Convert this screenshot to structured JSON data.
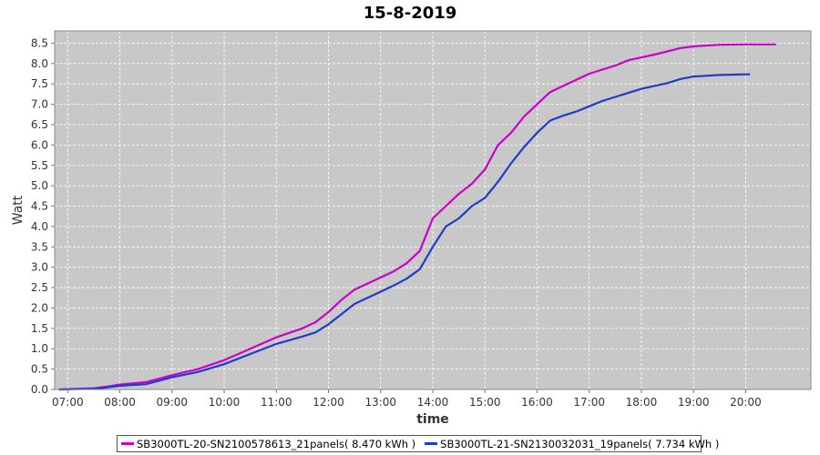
{
  "chart_data": {
    "type": "line",
    "title": "15-8-2019",
    "xlabel": "time",
    "ylabel": "Watt",
    "xlim": [
      "06:45",
      "21:15"
    ],
    "ylim": [
      0,
      8.8
    ],
    "xticks": [
      "07:00",
      "08:00",
      "09:00",
      "10:00",
      "11:00",
      "12:00",
      "13:00",
      "14:00",
      "15:00",
      "16:00",
      "17:00",
      "18:00",
      "19:00",
      "20:00"
    ],
    "yticks": [
      "0.0",
      "0.5",
      "1.0",
      "1.5",
      "2.0",
      "2.5",
      "3.0",
      "3.5",
      "4.0",
      "4.5",
      "5.0",
      "5.5",
      "6.0",
      "6.5",
      "7.0",
      "7.5",
      "8.0",
      "8.5"
    ],
    "grid": true,
    "background": "#c8c8c8",
    "legend_position": "bottom",
    "series": [
      {
        "name": "SB3000TL-20-SN2100578613_21panels( 8.470 kWh )",
        "color": "#cc00cc",
        "points": [
          [
            "06:50",
            0.0
          ],
          [
            "07:30",
            0.03
          ],
          [
            "07:45",
            0.07
          ],
          [
            "08:00",
            0.12
          ],
          [
            "08:30",
            0.18
          ],
          [
            "09:00",
            0.35
          ],
          [
            "09:30",
            0.5
          ],
          [
            "10:00",
            0.72
          ],
          [
            "10:30",
            1.0
          ],
          [
            "11:00",
            1.28
          ],
          [
            "11:30",
            1.5
          ],
          [
            "11:45",
            1.65
          ],
          [
            "12:00",
            1.9
          ],
          [
            "12:15",
            2.2
          ],
          [
            "12:30",
            2.45
          ],
          [
            "12:45",
            2.6
          ],
          [
            "13:00",
            2.75
          ],
          [
            "13:15",
            2.9
          ],
          [
            "13:30",
            3.1
          ],
          [
            "13:45",
            3.4
          ],
          [
            "14:00",
            4.2
          ],
          [
            "14:15",
            4.5
          ],
          [
            "14:30",
            4.8
          ],
          [
            "14:45",
            5.05
          ],
          [
            "15:00",
            5.4
          ],
          [
            "15:15",
            6.0
          ],
          [
            "15:30",
            6.3
          ],
          [
            "15:45",
            6.7
          ],
          [
            "16:00",
            7.0
          ],
          [
            "16:15",
            7.3
          ],
          [
            "16:30",
            7.45
          ],
          [
            "16:45",
            7.6
          ],
          [
            "17:00",
            7.75
          ],
          [
            "17:15",
            7.85
          ],
          [
            "17:30",
            7.95
          ],
          [
            "17:45",
            8.08
          ],
          [
            "18:00",
            8.15
          ],
          [
            "18:15",
            8.22
          ],
          [
            "18:30",
            8.3
          ],
          [
            "18:45",
            8.38
          ],
          [
            "19:00",
            8.42
          ],
          [
            "19:30",
            8.46
          ],
          [
            "20:00",
            8.47
          ],
          [
            "20:30",
            8.47
          ],
          [
            "20:35",
            8.47
          ]
        ]
      },
      {
        "name": "SB3000TL-21-SN2130032031_19panels( 7.734 kWh )",
        "color": "#1e3ccc",
        "points": [
          [
            "06:50",
            0.0
          ],
          [
            "07:30",
            0.02
          ],
          [
            "07:45",
            0.05
          ],
          [
            "08:00",
            0.09
          ],
          [
            "08:30",
            0.13
          ],
          [
            "09:00",
            0.3
          ],
          [
            "09:30",
            0.43
          ],
          [
            "10:00",
            0.62
          ],
          [
            "10:30",
            0.87
          ],
          [
            "11:00",
            1.12
          ],
          [
            "11:30",
            1.3
          ],
          [
            "11:45",
            1.4
          ],
          [
            "12:00",
            1.6
          ],
          [
            "12:15",
            1.85
          ],
          [
            "12:30",
            2.1
          ],
          [
            "12:45",
            2.25
          ],
          [
            "13:00",
            2.4
          ],
          [
            "13:15",
            2.55
          ],
          [
            "13:30",
            2.72
          ],
          [
            "13:45",
            2.95
          ],
          [
            "14:00",
            3.5
          ],
          [
            "14:15",
            4.0
          ],
          [
            "14:30",
            4.2
          ],
          [
            "14:45",
            4.5
          ],
          [
            "15:00",
            4.7
          ],
          [
            "15:15",
            5.1
          ],
          [
            "15:30",
            5.55
          ],
          [
            "15:45",
            5.95
          ],
          [
            "16:00",
            6.3
          ],
          [
            "16:15",
            6.6
          ],
          [
            "16:30",
            6.72
          ],
          [
            "16:45",
            6.82
          ],
          [
            "17:00",
            6.95
          ],
          [
            "17:15",
            7.08
          ],
          [
            "17:30",
            7.18
          ],
          [
            "17:45",
            7.28
          ],
          [
            "18:00",
            7.38
          ],
          [
            "18:15",
            7.45
          ],
          [
            "18:30",
            7.52
          ],
          [
            "18:45",
            7.62
          ],
          [
            "19:00",
            7.68
          ],
          [
            "19:30",
            7.72
          ],
          [
            "20:00",
            7.734
          ],
          [
            "20:05",
            7.734
          ]
        ]
      }
    ]
  }
}
